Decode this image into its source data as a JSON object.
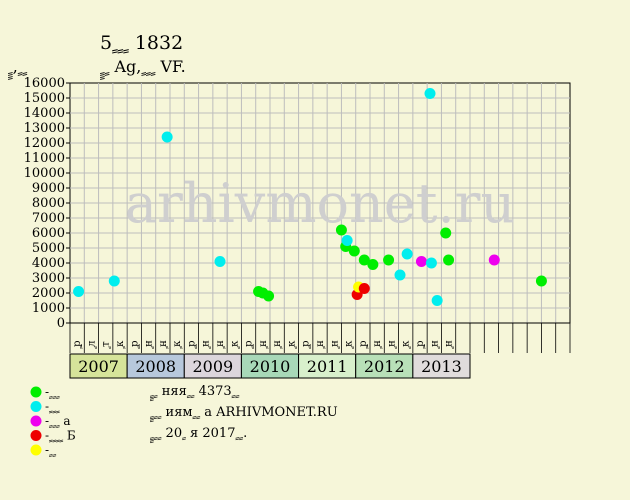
{
  "title": "5 ٍ ٍ ٍ 1832",
  "subtitle": "ٍ ٍ ٍ Ag, ٍ ٍ ٍ VF.",
  "ylabel": "ٍ ٍ, ٍ ٍ",
  "watermark": "arhivmonet.ru",
  "info": [
    "ٍ ٍ ٍ няя ٍ ٍ 4373 ٍ ٍ",
    "ٍ ٍ ٍ ٍ иям ٍ ٍ а ARHIVMONET.RU",
    "ٍ ٍ ٍ ٍ 20 ٍ я 2017 ٍ ٍ."
  ],
  "legend": [
    {
      "label": "- ٍ ٍ ٍ",
      "color": "#00ee00"
    },
    {
      "label": "- ٍ ٍ ٍ",
      "color": "#00eeee"
    },
    {
      "label": "- ٍ ٍ ٍ а",
      "color": "#ee00ee"
    },
    {
      "label": "- ٍ ٍ ٍ ٍ Б",
      "color": "#ee0000"
    },
    {
      "label": "- ٍ ٍ",
      "color": "#ffff00"
    }
  ],
  "chart_data": {
    "type": "scatter",
    "ylim": [
      0,
      16000
    ],
    "yticks": [
      0,
      1000,
      2000,
      3000,
      4000,
      5000,
      6000,
      7000,
      8000,
      9000,
      10000,
      11000,
      12000,
      13000,
      14000,
      15000,
      16000
    ],
    "grid": true,
    "xticks": [
      "ٍ р",
      "ٍ л",
      "ٍ т",
      "ٍ к",
      "ٍ р",
      "ٍ н",
      "ٍ н",
      "ٍ к",
      "ٍ р",
      "ٍ н",
      "ٍ н",
      "ٍ к",
      "ٍ р",
      "ٍ н",
      "ٍ н",
      "ٍ к",
      "ٍ р",
      "ٍ н",
      "ٍ н",
      "ٍ к",
      "ٍ р",
      "ٍ н",
      "ٍ н",
      "ٍ к",
      "ٍ р",
      "ٍ н",
      "ٍ н"
    ],
    "years": [
      {
        "label": "2007",
        "color": "#d6e49a"
      },
      {
        "label": "2008",
        "color": "#b7c8dc"
      },
      {
        "label": "2009",
        "color": "#dcd6dc"
      },
      {
        "label": "2010",
        "color": "#a8d8b8"
      },
      {
        "label": "2011",
        "color": "#d8f0cc"
      },
      {
        "label": "2012",
        "color": "#b8e0b8"
      },
      {
        "label": "2013",
        "color": "#e0dcdc"
      }
    ],
    "points": [
      {
        "x": 0.1,
        "y": 2100,
        "color": "#00eeee"
      },
      {
        "x": 2.6,
        "y": 2800,
        "color": "#00eeee"
      },
      {
        "x": 6.3,
        "y": 12400,
        "color": "#00eeee"
      },
      {
        "x": 10.0,
        "y": 4100,
        "color": "#00eeee"
      },
      {
        "x": 12.7,
        "y": 2100,
        "color": "#00ee00"
      },
      {
        "x": 13.0,
        "y": 2000,
        "color": "#00ee00"
      },
      {
        "x": 13.4,
        "y": 1800,
        "color": "#00ee00"
      },
      {
        "x": 18.5,
        "y": 6200,
        "color": "#00ee00"
      },
      {
        "x": 18.8,
        "y": 5100,
        "color": "#00ee00"
      },
      {
        "x": 18.9,
        "y": 5500,
        "color": "#00eeee"
      },
      {
        "x": 19.4,
        "y": 4800,
        "color": "#00ee00"
      },
      {
        "x": 19.6,
        "y": 1900,
        "color": "#ee0000"
      },
      {
        "x": 19.7,
        "y": 2400,
        "color": "#ffff00"
      },
      {
        "x": 20.1,
        "y": 2300,
        "color": "#ee0000"
      },
      {
        "x": 20.1,
        "y": 4200,
        "color": "#00ee00"
      },
      {
        "x": 20.7,
        "y": 3900,
        "color": "#00ee00"
      },
      {
        "x": 21.8,
        "y": 4200,
        "color": "#00ee00"
      },
      {
        "x": 22.6,
        "y": 3200,
        "color": "#00eeee"
      },
      {
        "x": 23.1,
        "y": 4600,
        "color": "#00eeee"
      },
      {
        "x": 24.1,
        "y": 4100,
        "color": "#ee00ee"
      },
      {
        "x": 24.7,
        "y": 15300,
        "color": "#00eeee"
      },
      {
        "x": 24.8,
        "y": 4000,
        "color": "#00eeee"
      },
      {
        "x": 25.2,
        "y": 1500,
        "color": "#00eeee"
      },
      {
        "x": 25.8,
        "y": 6000,
        "color": "#00ee00"
      },
      {
        "x": 26.0,
        "y": 4200,
        "color": "#00ee00"
      },
      {
        "x": 29.2,
        "y": 4200,
        "color": "#ee00ee"
      },
      {
        "x": 32.5,
        "y": 2800,
        "color": "#00ee00"
      }
    ]
  }
}
